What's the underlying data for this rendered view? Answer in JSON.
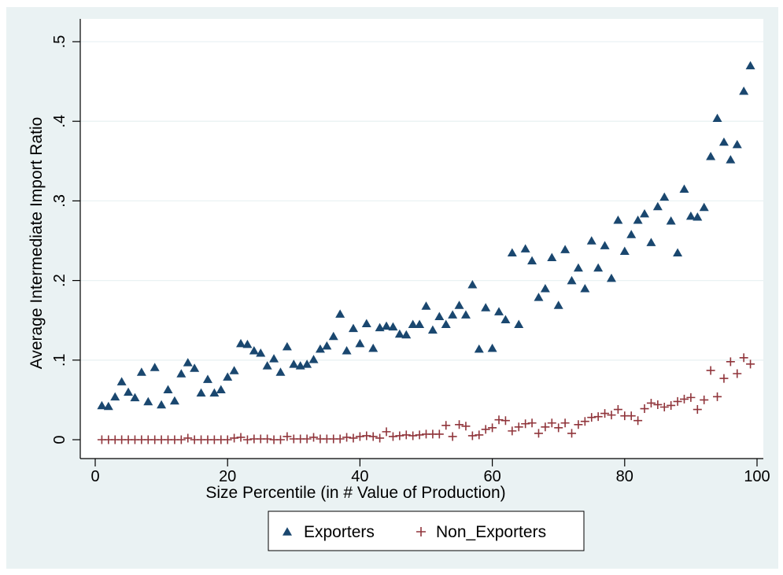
{
  "chart_data": {
    "type": "scatter",
    "xlabel": "Size Percentile (in # Value of Production)",
    "ylabel": "Average Intermediate Import Ratio",
    "xlim": [
      0,
      100
    ],
    "ylim": [
      0,
      0.5
    ],
    "x_ticks": [
      0,
      20,
      40,
      60,
      80,
      100
    ],
    "x_tick_labels": [
      "0",
      "20",
      "40",
      "60",
      "80",
      "100"
    ],
    "y_ticks": [
      0,
      0.1,
      0.2,
      0.3,
      0.4,
      0.5
    ],
    "y_tick_labels": [
      "0",
      ".1",
      ".2",
      ".3",
      ".4",
      ".5"
    ],
    "grid": "horizontal",
    "legend_position": "bottom",
    "series": [
      {
        "name": "Exporters",
        "marker": "triangle",
        "color": "#1a476f",
        "x": [
          1,
          2,
          3,
          4,
          5,
          6,
          7,
          8,
          9,
          10,
          11,
          12,
          13,
          14,
          15,
          16,
          17,
          18,
          19,
          20,
          21,
          22,
          23,
          24,
          25,
          26,
          27,
          28,
          29,
          30,
          31,
          32,
          33,
          34,
          35,
          36,
          37,
          38,
          39,
          40,
          41,
          42,
          43,
          44,
          45,
          46,
          47,
          48,
          49,
          50,
          51,
          52,
          53,
          54,
          55,
          56,
          57,
          58,
          59,
          60,
          61,
          62,
          63,
          64,
          65,
          66,
          67,
          68,
          69,
          70,
          71,
          72,
          73,
          74,
          75,
          76,
          77,
          78,
          79,
          80,
          81,
          82,
          83,
          84,
          85,
          86,
          87,
          88,
          89,
          90,
          91,
          92,
          93,
          94,
          95,
          96,
          97,
          98,
          99
        ],
        "y": [
          0.043,
          0.042,
          0.054,
          0.073,
          0.06,
          0.053,
          0.085,
          0.048,
          0.091,
          0.044,
          0.063,
          0.049,
          0.083,
          0.097,
          0.09,
          0.059,
          0.076,
          0.059,
          0.063,
          0.079,
          0.087,
          0.121,
          0.12,
          0.112,
          0.109,
          0.093,
          0.102,
          0.085,
          0.117,
          0.095,
          0.093,
          0.095,
          0.101,
          0.114,
          0.118,
          0.13,
          0.158,
          0.112,
          0.14,
          0.121,
          0.146,
          0.115,
          0.141,
          0.143,
          0.142,
          0.133,
          0.132,
          0.145,
          0.145,
          0.168,
          0.138,
          0.155,
          0.145,
          0.157,
          0.169,
          0.157,
          0.195,
          0.114,
          0.166,
          0.115,
          0.161,
          0.151,
          0.235,
          0.145,
          0.24,
          0.225,
          0.179,
          0.19,
          0.229,
          0.169,
          0.239,
          0.2,
          0.216,
          0.19,
          0.25,
          0.216,
          0.244,
          0.203,
          0.276,
          0.237,
          0.258,
          0.276,
          0.284,
          0.248,
          0.293,
          0.305,
          0.275,
          0.235,
          0.315,
          0.281,
          0.28,
          0.292,
          0.356,
          0.404,
          0.374,
          0.352,
          0.371,
          0.438,
          0.47
        ]
      },
      {
        "name": "Non_Exporters",
        "marker": "plus",
        "color": "#90353b",
        "x": [
          1,
          2,
          3,
          4,
          5,
          6,
          7,
          8,
          9,
          10,
          11,
          12,
          13,
          14,
          15,
          16,
          17,
          18,
          19,
          20,
          21,
          22,
          23,
          24,
          25,
          26,
          27,
          28,
          29,
          30,
          31,
          32,
          33,
          34,
          35,
          36,
          37,
          38,
          39,
          40,
          41,
          42,
          43,
          44,
          45,
          46,
          47,
          48,
          49,
          50,
          51,
          52,
          53,
          54,
          55,
          56,
          57,
          58,
          59,
          60,
          61,
          62,
          63,
          64,
          65,
          66,
          67,
          68,
          69,
          70,
          71,
          72,
          73,
          74,
          75,
          76,
          77,
          78,
          79,
          80,
          81,
          82,
          83,
          84,
          85,
          86,
          87,
          88,
          89,
          90,
          91,
          92,
          93,
          94,
          95,
          96,
          97,
          98,
          99
        ],
        "y": [
          0.0,
          0.0,
          0.0,
          0.0,
          0.0,
          0.0,
          0.0,
          0.0,
          0.0,
          0.0,
          0.0,
          0.0,
          0.0,
          0.002,
          0.0,
          0.0,
          0.0,
          0.0,
          0.0,
          0.0,
          0.002,
          0.003,
          0.0,
          0.001,
          0.001,
          0.001,
          0.0,
          0.0,
          0.004,
          0.001,
          0.001,
          0.001,
          0.003,
          0.001,
          0.001,
          0.001,
          0.001,
          0.003,
          0.002,
          0.004,
          0.005,
          0.004,
          0.002,
          0.01,
          0.004,
          0.005,
          0.006,
          0.005,
          0.006,
          0.007,
          0.007,
          0.007,
          0.018,
          0.004,
          0.019,
          0.017,
          0.005,
          0.006,
          0.013,
          0.015,
          0.025,
          0.024,
          0.011,
          0.016,
          0.02,
          0.021,
          0.008,
          0.016,
          0.021,
          0.015,
          0.021,
          0.008,
          0.019,
          0.023,
          0.028,
          0.029,
          0.033,
          0.031,
          0.038,
          0.03,
          0.03,
          0.024,
          0.039,
          0.046,
          0.044,
          0.041,
          0.043,
          0.048,
          0.051,
          0.053,
          0.038,
          0.05,
          0.087,
          0.054,
          0.077,
          0.098,
          0.083,
          0.103,
          0.095
        ]
      }
    ]
  }
}
